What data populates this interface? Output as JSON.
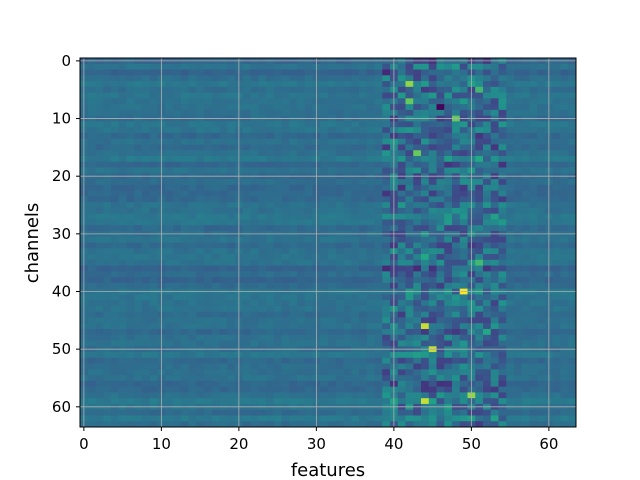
{
  "chart_data": {
    "type": "heatmap",
    "title": "",
    "xlabel": "features",
    "ylabel": "channels",
    "xlim": [
      0,
      63
    ],
    "ylim": [
      63,
      0
    ],
    "grid": true,
    "colormap": "viridis",
    "x_ticks": [
      0,
      10,
      20,
      30,
      40,
      50,
      60
    ],
    "y_ticks": [
      0,
      10,
      20,
      30,
      40,
      50,
      60
    ],
    "grid_color": "#b0b0b0",
    "background_value": 0.45,
    "active_columns": [
      39,
      54
    ],
    "highlight_cells": [
      {
        "row": 4,
        "col": 42,
        "value": 0.9
      },
      {
        "row": 5,
        "col": 51,
        "value": 0.8
      },
      {
        "row": 7,
        "col": 42,
        "value": 0.85
      },
      {
        "row": 8,
        "col": 46,
        "value": 0.02
      },
      {
        "row": 10,
        "col": 48,
        "value": 0.85
      },
      {
        "row": 16,
        "col": 43,
        "value": 0.85
      },
      {
        "row": 17,
        "col": 51,
        "value": 0.75
      },
      {
        "row": 34,
        "col": 44,
        "value": 0.75
      },
      {
        "row": 35,
        "col": 51,
        "value": 0.8
      },
      {
        "row": 40,
        "col": 49,
        "value": 1.0
      },
      {
        "row": 46,
        "col": 44,
        "value": 0.95
      },
      {
        "row": 47,
        "col": 52,
        "value": 0.75
      },
      {
        "row": 50,
        "col": 45,
        "value": 0.95
      },
      {
        "row": 58,
        "col": 50,
        "value": 0.9
      },
      {
        "row": 59,
        "col": 44,
        "value": 0.95
      }
    ]
  }
}
